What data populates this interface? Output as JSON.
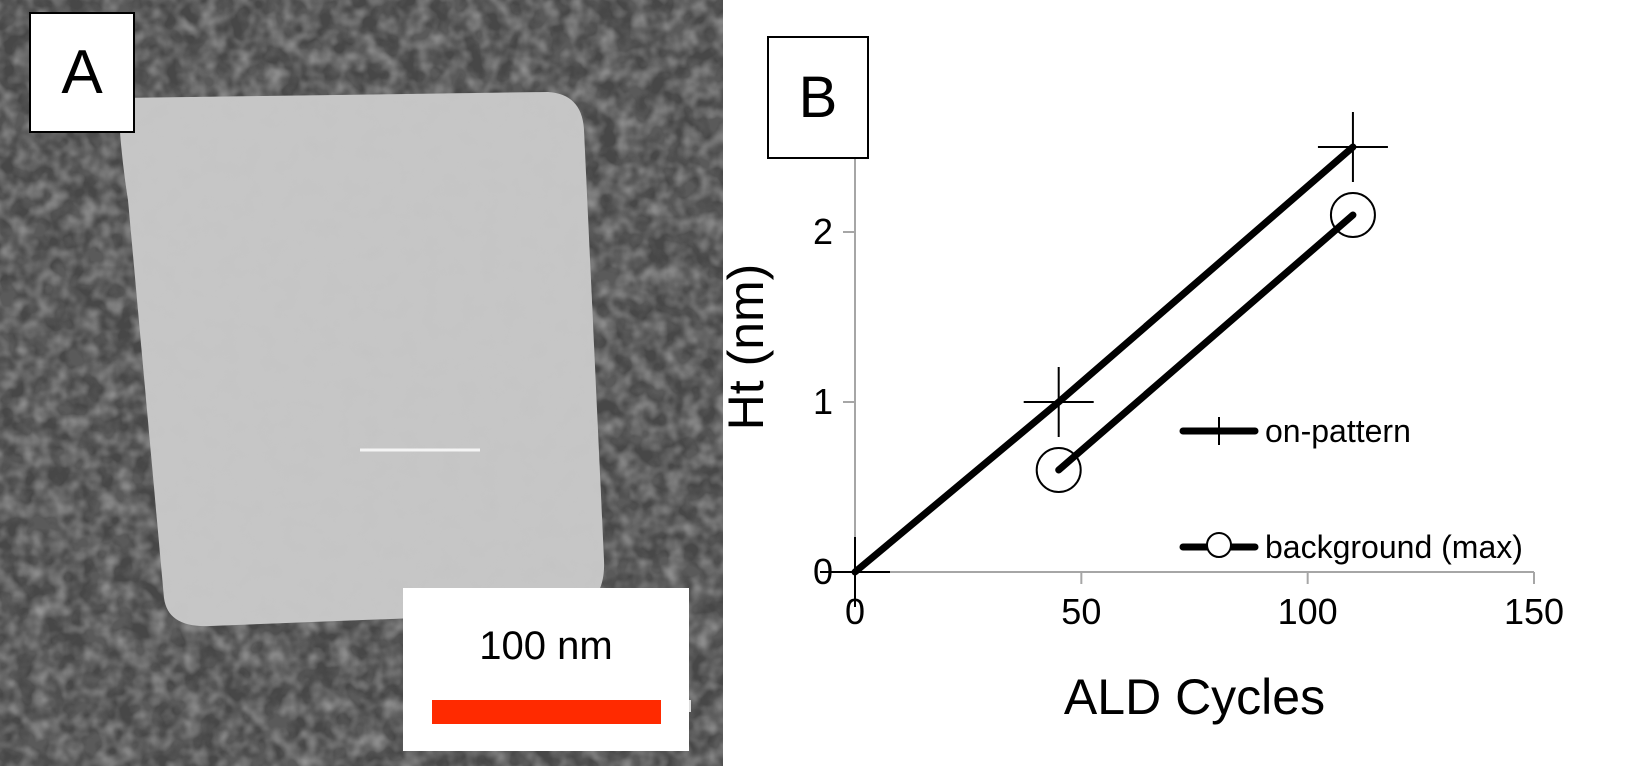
{
  "panel_a": {
    "label": "A",
    "scale_bar": {
      "text": "100 nm",
      "color": "#ff2a00"
    },
    "image_colors": {
      "background": "#3e3e3e",
      "pattern": "#c4c4c4"
    }
  },
  "panel_b": {
    "label": "B"
  },
  "chart_data": {
    "type": "line",
    "title": "",
    "xlabel": "ALD Cycles",
    "ylabel": "Ht (nm)",
    "xlim": [
      0,
      150
    ],
    "ylim": [
      0,
      3
    ],
    "xticks": [
      0,
      50,
      100,
      150
    ],
    "yticks": [
      0,
      1,
      2
    ],
    "grid": false,
    "legend_position": "right",
    "series": [
      {
        "name": "on-pattern",
        "marker": "plus",
        "color": "#000000",
        "x": [
          0,
          45,
          110
        ],
        "y": [
          0,
          1.0,
          2.5
        ]
      },
      {
        "name": "background (max)",
        "marker": "circle",
        "color": "#000000",
        "x": [
          45,
          110
        ],
        "y": [
          0.6,
          2.1
        ]
      }
    ]
  }
}
